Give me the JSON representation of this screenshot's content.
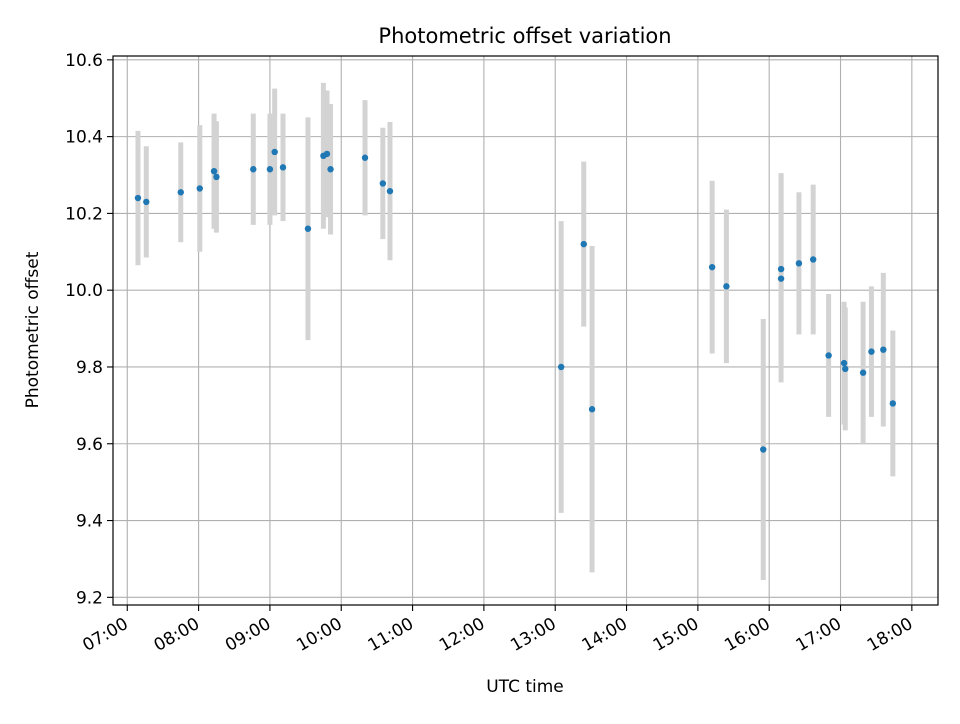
{
  "chart_data": {
    "type": "scatter",
    "title": "Photometric offset variation",
    "xlabel": "UTC time",
    "ylabel": "Photometric offset",
    "x_unit": "UTC time (HH:MM)",
    "xlim": [
      "06:48",
      "18:22"
    ],
    "ylim": [
      9.18,
      10.61
    ],
    "x_ticks": [
      "07:00",
      "08:00",
      "09:00",
      "10:00",
      "11:00",
      "12:00",
      "13:00",
      "14:00",
      "15:00",
      "16:00",
      "17:00",
      "18:00"
    ],
    "y_ticks": [
      "9.2",
      "9.4",
      "9.6",
      "9.8",
      "10.0",
      "10.2",
      "10.4",
      "10.6"
    ],
    "grid": true,
    "colors": {
      "point": "#1f77b4",
      "errorbar": "#d3d3d3",
      "grid": "#b0b0b0"
    },
    "points": [
      {
        "x": "07:09",
        "y": 10.24,
        "err": 0.175
      },
      {
        "x": "07:16",
        "y": 10.23,
        "err": 0.145
      },
      {
        "x": "07:45",
        "y": 10.255,
        "err": 0.13
      },
      {
        "x": "08:01",
        "y": 10.265,
        "err": 0.165
      },
      {
        "x": "08:13",
        "y": 10.31,
        "err": 0.15
      },
      {
        "x": "08:15",
        "y": 10.295,
        "err": 0.145
      },
      {
        "x": "08:46",
        "y": 10.315,
        "err": 0.145
      },
      {
        "x": "09:00",
        "y": 10.315,
        "err": 0.145
      },
      {
        "x": "09:04",
        "y": 10.36,
        "err": 0.165
      },
      {
        "x": "09:11",
        "y": 10.32,
        "err": 0.14
      },
      {
        "x": "09:32",
        "y": 10.16,
        "err": 0.29
      },
      {
        "x": "09:45",
        "y": 10.35,
        "err": 0.19
      },
      {
        "x": "09:48",
        "y": 10.355,
        "err": 0.165
      },
      {
        "x": "09:51",
        "y": 10.315,
        "err": 0.17
      },
      {
        "x": "10:20",
        "y": 10.345,
        "err": 0.15
      },
      {
        "x": "10:35",
        "y": 10.278,
        "err": 0.145
      },
      {
        "x": "10:41",
        "y": 10.258,
        "err": 0.18
      },
      {
        "x": "13:05",
        "y": 9.8,
        "err": 0.38
      },
      {
        "x": "13:24",
        "y": 10.12,
        "err": 0.215
      },
      {
        "x": "13:31",
        "y": 9.69,
        "err": 0.425
      },
      {
        "x": "15:12",
        "y": 10.06,
        "err": 0.225
      },
      {
        "x": "15:24",
        "y": 10.01,
        "err": 0.2
      },
      {
        "x": "15:55",
        "y": 9.585,
        "err": 0.34
      },
      {
        "x": "16:10",
        "y": 10.055,
        "err": 0.25
      },
      {
        "x": "16:10",
        "y": 10.03,
        "err": 0.27
      },
      {
        "x": "16:25",
        "y": 10.07,
        "err": 0.185
      },
      {
        "x": "16:37",
        "y": 10.08,
        "err": 0.195
      },
      {
        "x": "16:50",
        "y": 9.83,
        "err": 0.16
      },
      {
        "x": "17:03",
        "y": 9.81,
        "err": 0.16
      },
      {
        "x": "17:04",
        "y": 9.795,
        "err": 0.16
      },
      {
        "x": "17:19",
        "y": 9.785,
        "err": 0.185
      },
      {
        "x": "17:26",
        "y": 9.84,
        "err": 0.17
      },
      {
        "x": "17:36",
        "y": 9.845,
        "err": 0.2
      },
      {
        "x": "17:44",
        "y": 9.705,
        "err": 0.19
      }
    ]
  }
}
